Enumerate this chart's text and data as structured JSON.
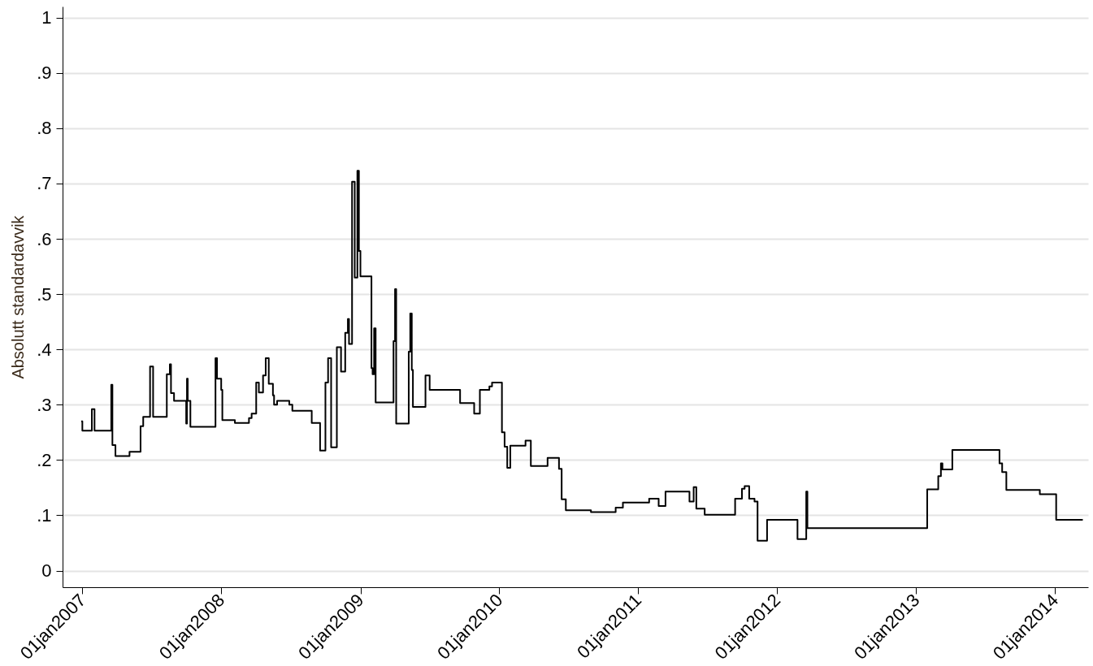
{
  "chart_data": {
    "type": "step",
    "ylabel": "Absolutt standardavvik",
    "xlim": [
      "2006-11-10",
      "2014-03-29"
    ],
    "ylim": [
      -0.03,
      1.02
    ],
    "xticks": [
      {
        "value": "2007-01-01",
        "label": "01jan2007"
      },
      {
        "value": "2008-01-01",
        "label": "01jan2008"
      },
      {
        "value": "2009-01-01",
        "label": "01jan2009"
      },
      {
        "value": "2010-01-01",
        "label": "01jan2010"
      },
      {
        "value": "2011-01-01",
        "label": "01jan2011"
      },
      {
        "value": "2012-01-01",
        "label": "01jan2012"
      },
      {
        "value": "2013-01-01",
        "label": "01jan2013"
      },
      {
        "value": "2014-01-01",
        "label": "01jan2014"
      }
    ],
    "yticks": [
      0,
      {
        "value": 0.1,
        "label": ".1"
      },
      {
        "value": 0.2,
        "label": ".2"
      },
      {
        "value": 0.3,
        "label": ".3"
      },
      {
        "value": 0.4,
        "label": ".4"
      },
      {
        "value": 0.5,
        "label": ".5"
      },
      {
        "value": 0.6,
        "label": ".6"
      },
      {
        "value": 0.7,
        "label": ".7"
      },
      {
        "value": 0.8,
        "label": ".8"
      },
      {
        "value": 0.9,
        "label": ".9"
      },
      1
    ],
    "grid": "y",
    "line_style": "solid",
    "series": [
      {
        "color": "#000000",
        "x": [
          "2006-12-29",
          "2007-01-01",
          "2007-01-26",
          "2007-02-02",
          "2007-03-18",
          "2007-03-21",
          "2007-03-29",
          "2007-05-05",
          "2007-06-03",
          "2007-06-10",
          "2007-06-28",
          "2007-07-06",
          "2007-08-11",
          "2007-08-19",
          "2007-08-22",
          "2007-08-30",
          "2007-10-01",
          "2007-10-03",
          "2007-10-05",
          "2007-10-12",
          "2007-12-17",
          "2007-12-21",
          "2008-01-01",
          "2008-01-04",
          "2008-02-06",
          "2008-03-14",
          "2008-03-21",
          "2008-04-02",
          "2008-04-09",
          "2008-04-20",
          "2008-04-27",
          "2008-05-05",
          "2008-05-16",
          "2008-05-19",
          "2008-05-27",
          "2008-06-28",
          "2008-07-06",
          "2008-08-26",
          "2008-09-17",
          "2008-10-01",
          "2008-10-08",
          "2008-10-16",
          "2008-10-31",
          "2008-11-11",
          "2008-11-22",
          "2008-11-29",
          "2008-12-02",
          "2008-12-10",
          "2008-12-17",
          "2008-12-24",
          "2008-12-28",
          "2009-01-01",
          "2009-01-30",
          "2009-02-02",
          "2009-02-06",
          "2009-02-10",
          "2009-03-29",
          "2009-04-02",
          "2009-04-05",
          "2009-05-08",
          "2009-05-12",
          "2009-05-16",
          "2009-05-19",
          "2009-06-21",
          "2009-07-02",
          "2009-09-20",
          "2009-10-27",
          "2009-11-11",
          "2009-12-06",
          "2009-12-13",
          "2010-01-08",
          "2010-01-15",
          "2010-01-22",
          "2010-01-30",
          "2010-03-11",
          "2010-03-25",
          "2010-05-08",
          "2010-06-07",
          "2010-06-14",
          "2010-06-25",
          "2010-08-30",
          "2010-11-03",
          "2010-11-22",
          "2011-01-30",
          "2011-02-24",
          "2011-03-14",
          "2011-05-16",
          "2011-05-27",
          "2011-06-03",
          "2011-06-25",
          "2011-09-13",
          "2011-10-01",
          "2011-10-08",
          "2011-10-20",
          "2011-11-03",
          "2011-11-11",
          "2011-12-06",
          "2012-02-24",
          "2012-03-18",
          "2012-03-21",
          "2013-01-30",
          "2013-02-28",
          "2013-03-07",
          "2013-03-11",
          "2013-04-06",
          "2013-08-08",
          "2013-08-15",
          "2013-08-26",
          "2013-11-22",
          "2014-01-04",
          "2014-03-15"
        ],
        "values": [
          0.27,
          0.253,
          0.292,
          0.253,
          0.336,
          0.227,
          0.207,
          0.215,
          0.261,
          0.278,
          0.369,
          0.278,
          0.355,
          0.373,
          0.321,
          0.307,
          0.266,
          0.347,
          0.307,
          0.26,
          0.384,
          0.347,
          0.327,
          0.272,
          0.267,
          0.276,
          0.284,
          0.34,
          0.322,
          0.353,
          0.384,
          0.338,
          0.317,
          0.3,
          0.307,
          0.3,
          0.289,
          0.267,
          0.217,
          0.34,
          0.384,
          0.223,
          0.404,
          0.36,
          0.43,
          0.455,
          0.41,
          0.703,
          0.53,
          0.723,
          0.578,
          0.532,
          0.366,
          0.355,
          0.438,
          0.304,
          0.415,
          0.509,
          0.266,
          0.396,
          0.465,
          0.363,
          0.296,
          0.353,
          0.327,
          0.303,
          0.284,
          0.327,
          0.333,
          0.34,
          0.25,
          0.224,
          0.186,
          0.226,
          0.235,
          0.189,
          0.204,
          0.184,
          0.129,
          0.109,
          0.106,
          0.114,
          0.123,
          0.13,
          0.117,
          0.143,
          0.125,
          0.151,
          0.112,
          0.101,
          0.13,
          0.148,
          0.153,
          0.13,
          0.125,
          0.054,
          0.092,
          0.057,
          0.143,
          0.077,
          0.147,
          0.171,
          0.194,
          0.183,
          0.218,
          0.194,
          0.178,
          0.146,
          0.138,
          0.092,
          0.092
        ]
      }
    ]
  }
}
